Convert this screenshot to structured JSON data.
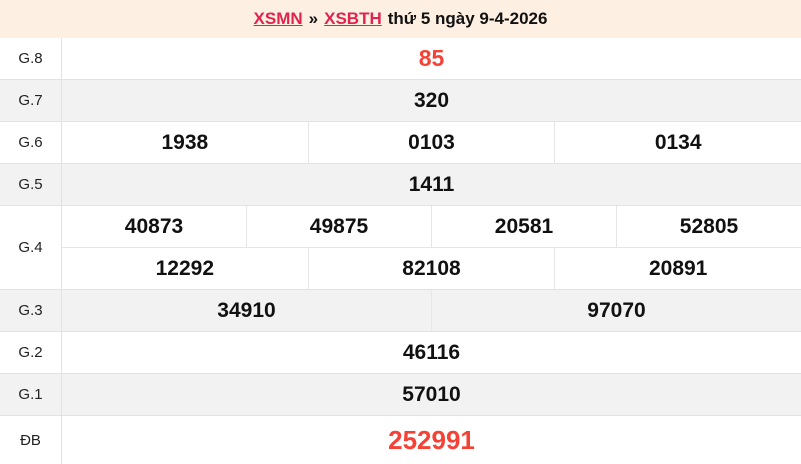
{
  "header": {
    "link_region": "XSMN",
    "separator": "»",
    "link_station": "XSBTH",
    "date_text": "thứ 5 ngày 9-4-2026"
  },
  "colors": {
    "page_background": "#fdf0e3",
    "row_alt_background": "#f2f2f2",
    "border": "#e2e2e2",
    "link_red": "#e0234e",
    "highlight_red": "#f44336",
    "number_text": "#111111"
  },
  "table": {
    "rows": [
      {
        "label": "G.8",
        "lines": [
          [
            "85"
          ]
        ]
      },
      {
        "label": "G.7",
        "lines": [
          [
            "320"
          ]
        ]
      },
      {
        "label": "G.6",
        "lines": [
          [
            "1938",
            "0103",
            "0134"
          ]
        ]
      },
      {
        "label": "G.5",
        "lines": [
          [
            "1411"
          ]
        ]
      },
      {
        "label": "G.4",
        "lines": [
          [
            "40873",
            "49875",
            "20581",
            "52805"
          ],
          [
            "12292",
            "82108",
            "20891"
          ]
        ]
      },
      {
        "label": "G.3",
        "lines": [
          [
            "34910",
            "97070"
          ]
        ]
      },
      {
        "label": "G.2",
        "lines": [
          [
            "46116"
          ]
        ]
      },
      {
        "label": "G.1",
        "lines": [
          [
            "57010"
          ]
        ]
      },
      {
        "label": "ĐB",
        "lines": [
          [
            "252991"
          ]
        ]
      }
    ]
  }
}
